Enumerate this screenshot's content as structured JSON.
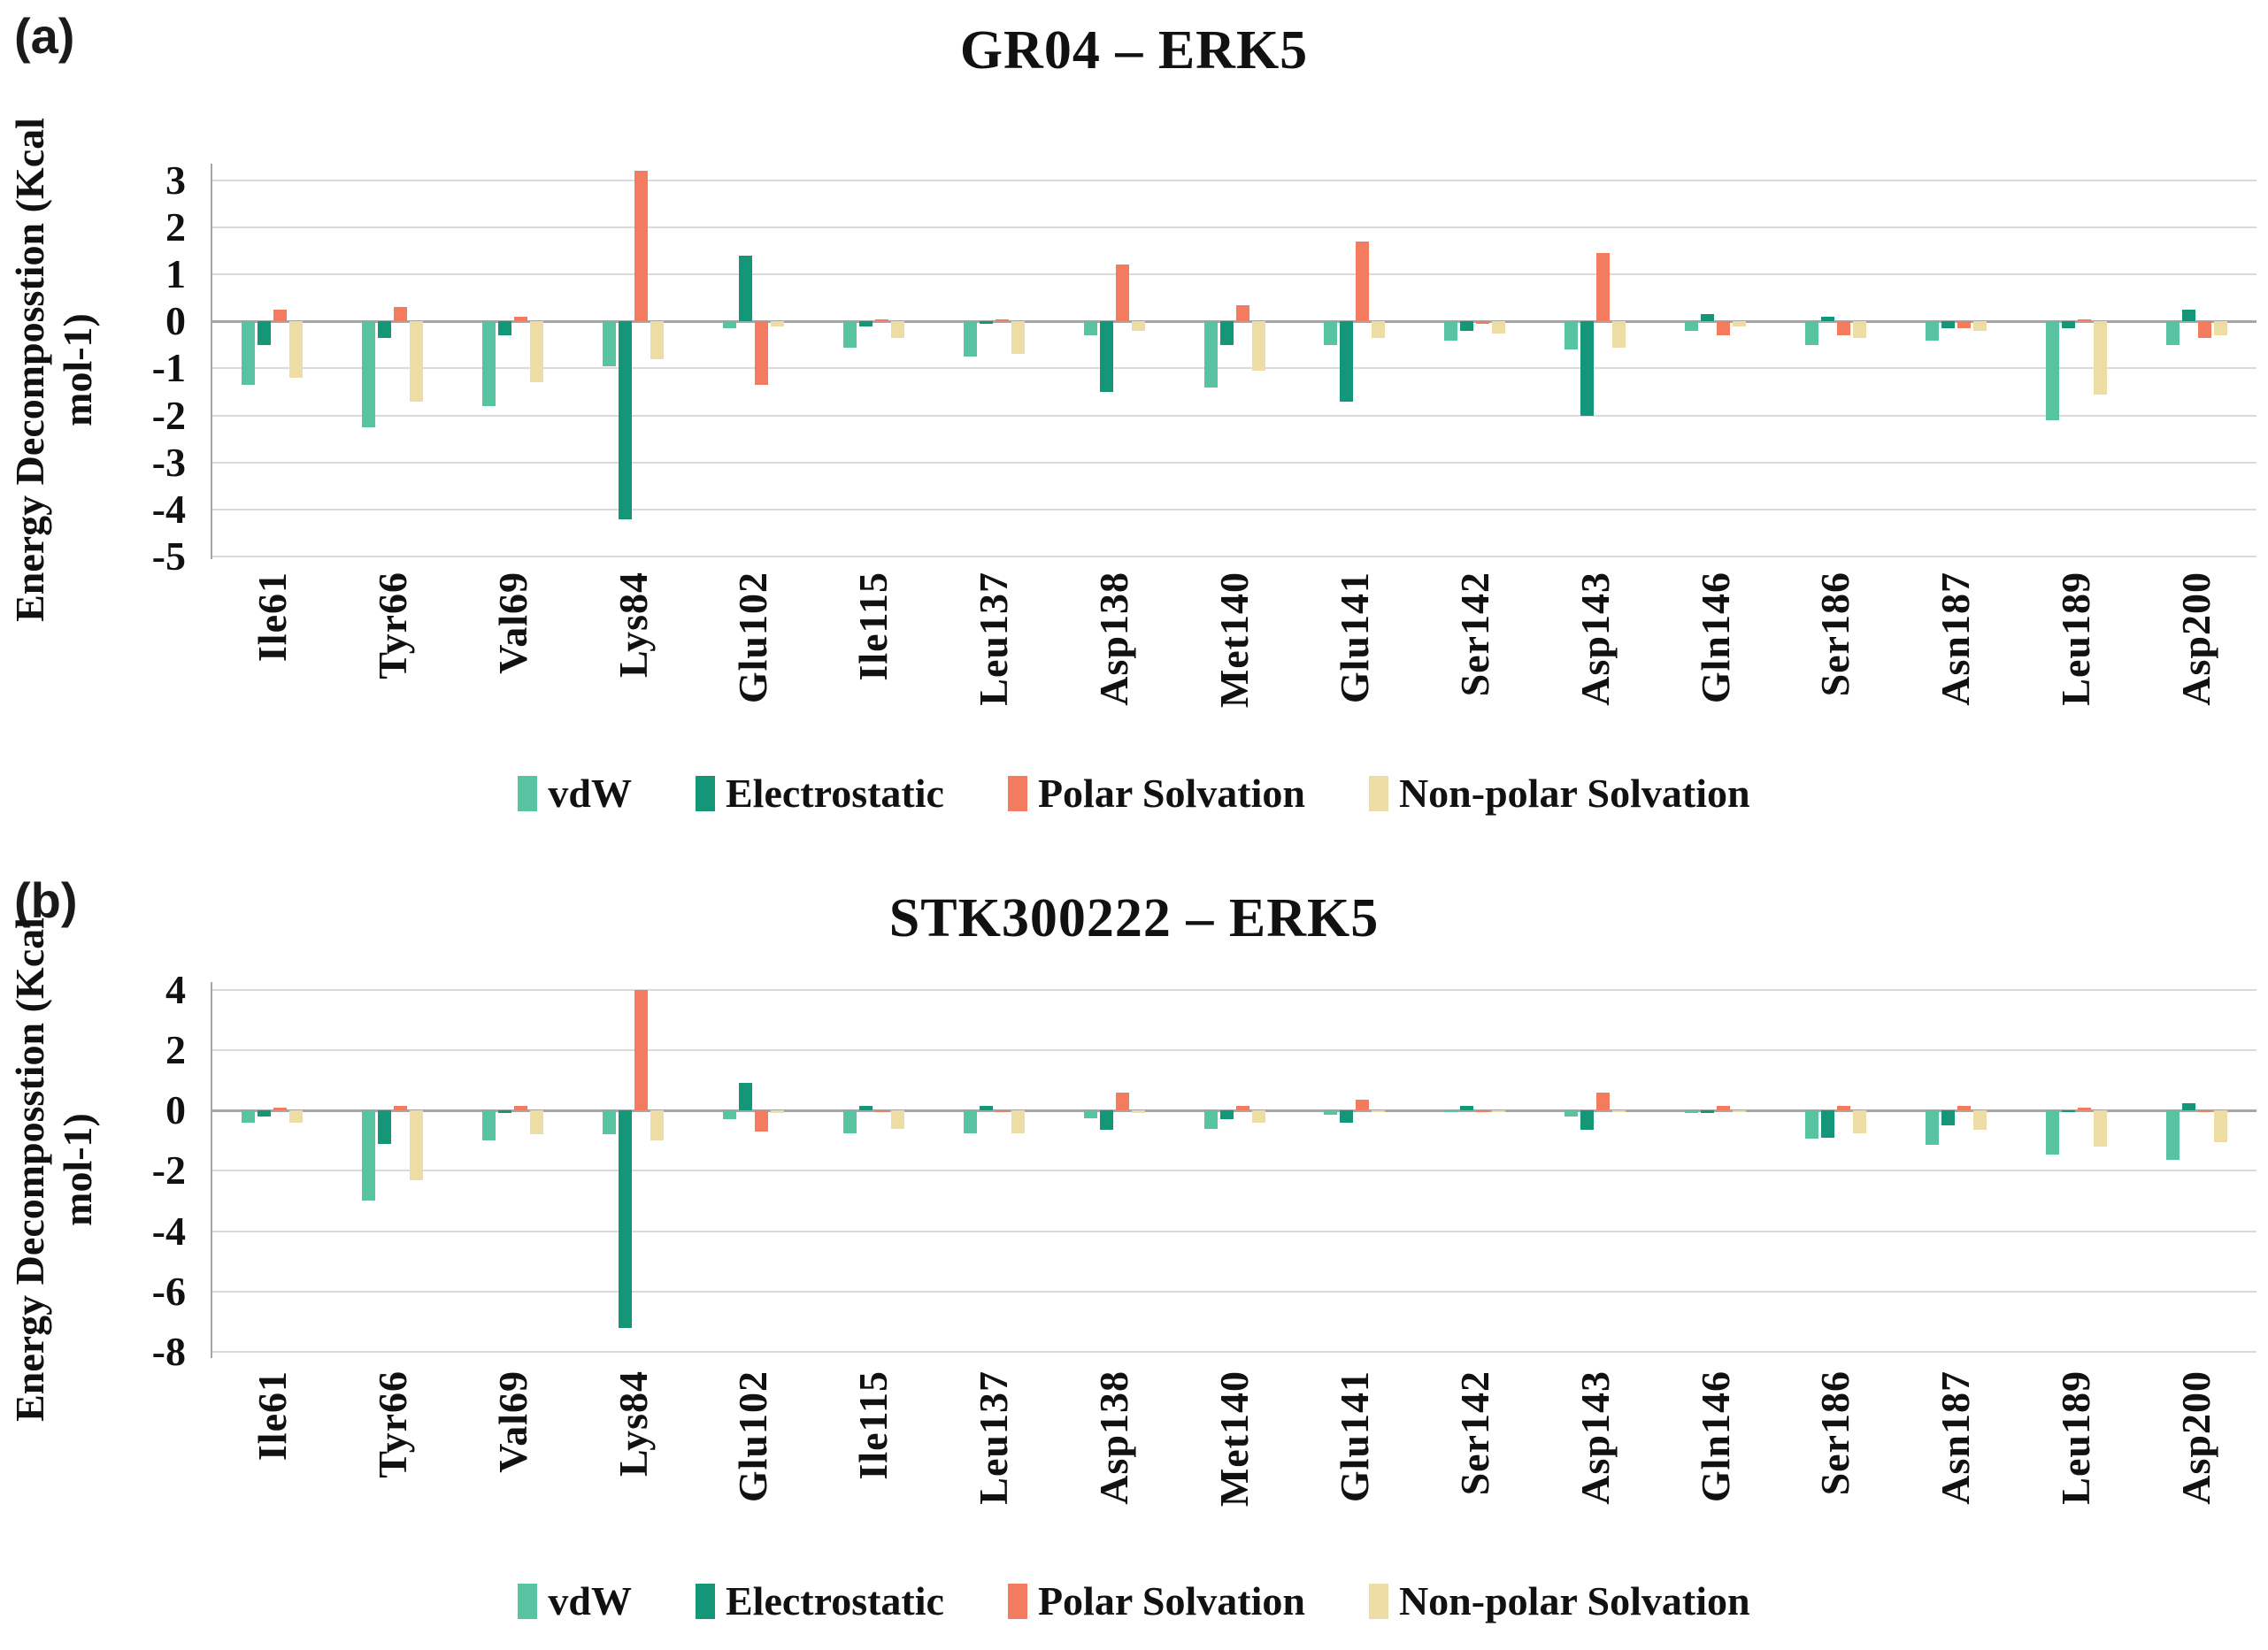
{
  "figure": {
    "panel_a_label": "(a)",
    "panel_b_label": "(b)"
  },
  "chart_data": [
    {
      "id": "a",
      "type": "bar",
      "title": "GR04 – ERK5",
      "ylabel_line1": "Energy Decomposstion (Kcal",
      "ylabel_line2": "mol-1)",
      "legend_position": "bottom",
      "grid": true,
      "yticks": [
        3,
        2,
        1,
        0,
        -1,
        -2,
        -3,
        -4,
        -5
      ],
      "ylim": [
        -5.05,
        3.35
      ],
      "categories": [
        "Ile61",
        "Tyr66",
        "Val69",
        "Lys84",
        "Glu102",
        "Ile115",
        "Leu137",
        "Asp138",
        "Met140",
        "Glu141",
        "Ser142",
        "Asp143",
        "Gln146",
        "Ser186",
        "Asn187",
        "Leu189",
        "Asp200"
      ],
      "series": [
        {
          "name": "vdW",
          "color": "#57C3A0",
          "values": [
            -1.35,
            -2.25,
            -1.8,
            -0.95,
            -0.15,
            -0.55,
            -0.75,
            -0.3,
            -1.4,
            -0.5,
            -0.4,
            -0.6,
            -0.2,
            -0.5,
            -0.4,
            -2.1,
            -0.5
          ]
        },
        {
          "name": "Electrostatic",
          "color": "#149679",
          "values": [
            -0.5,
            -0.35,
            -0.3,
            -4.2,
            1.4,
            -0.1,
            -0.05,
            -1.5,
            -0.5,
            -1.7,
            -0.2,
            -2.0,
            0.15,
            0.1,
            -0.15,
            -0.15,
            0.25
          ]
        },
        {
          "name": "Polar Solvation",
          "color": "#F37B5F",
          "values": [
            0.25,
            0.3,
            0.1,
            3.2,
            -1.35,
            0.05,
            0.05,
            1.2,
            0.35,
            1.7,
            -0.05,
            1.45,
            -0.3,
            -0.3,
            -0.15,
            0.05,
            -0.35
          ]
        },
        {
          "name": "Non-polar Solvation",
          "color": "#EDDCA4",
          "values": [
            -1.2,
            -1.7,
            -1.3,
            -0.8,
            -0.1,
            -0.35,
            -0.7,
            -0.2,
            -1.05,
            -0.35,
            -0.25,
            -0.55,
            -0.1,
            -0.35,
            -0.2,
            -1.55,
            -0.3
          ]
        }
      ]
    },
    {
      "id": "b",
      "type": "bar",
      "title": "STK300222 – ERK5",
      "ylabel_line1": "Energy Decomposstion (Kcal",
      "ylabel_line2": "mol-1)",
      "legend_position": "bottom",
      "grid": true,
      "yticks": [
        4,
        2,
        0,
        -2,
        -4,
        -6,
        -8
      ],
      "ylim": [
        -8.2,
        4.25
      ],
      "categories": [
        "Ile61",
        "Tyr66",
        "Val69",
        "Lys84",
        "Glu102",
        "Ile115",
        "Leu137",
        "Asp138",
        "Met140",
        "Glu141",
        "Ser142",
        "Asp143",
        "Gln146",
        "Ser186",
        "Asn187",
        "Leu189",
        "Asp200"
      ],
      "series": [
        {
          "name": "vdW",
          "color": "#57C3A0",
          "values": [
            -0.4,
            -3.0,
            -1.0,
            -0.8,
            -0.3,
            -0.75,
            -0.75,
            -0.25,
            -0.6,
            -0.15,
            -0.05,
            -0.2,
            -0.1,
            -0.95,
            -1.15,
            -1.45,
            -1.65
          ]
        },
        {
          "name": "Electrostatic",
          "color": "#149679",
          "values": [
            -0.2,
            -1.1,
            -0.1,
            -7.2,
            0.9,
            0.15,
            0.15,
            -0.65,
            -0.3,
            -0.4,
            0.15,
            -0.65,
            -0.1,
            -0.9,
            -0.5,
            -0.05,
            0.25
          ]
        },
        {
          "name": "Polar Solvation",
          "color": "#F37B5F",
          "values": [
            0.1,
            0.15,
            0.15,
            4.0,
            -0.7,
            -0.03,
            -0.05,
            0.6,
            0.15,
            0.35,
            -0.03,
            0.6,
            0.15,
            0.15,
            0.15,
            0.1,
            -0.05
          ]
        },
        {
          "name": "Non-polar Solvation",
          "color": "#EDDCA4",
          "values": [
            -0.4,
            -2.3,
            -0.8,
            -1.0,
            -0.1,
            -0.6,
            -0.75,
            -0.1,
            -0.4,
            -0.05,
            -0.05,
            -0.05,
            -0.05,
            -0.75,
            -0.65,
            -1.2,
            -1.05
          ]
        }
      ]
    }
  ]
}
